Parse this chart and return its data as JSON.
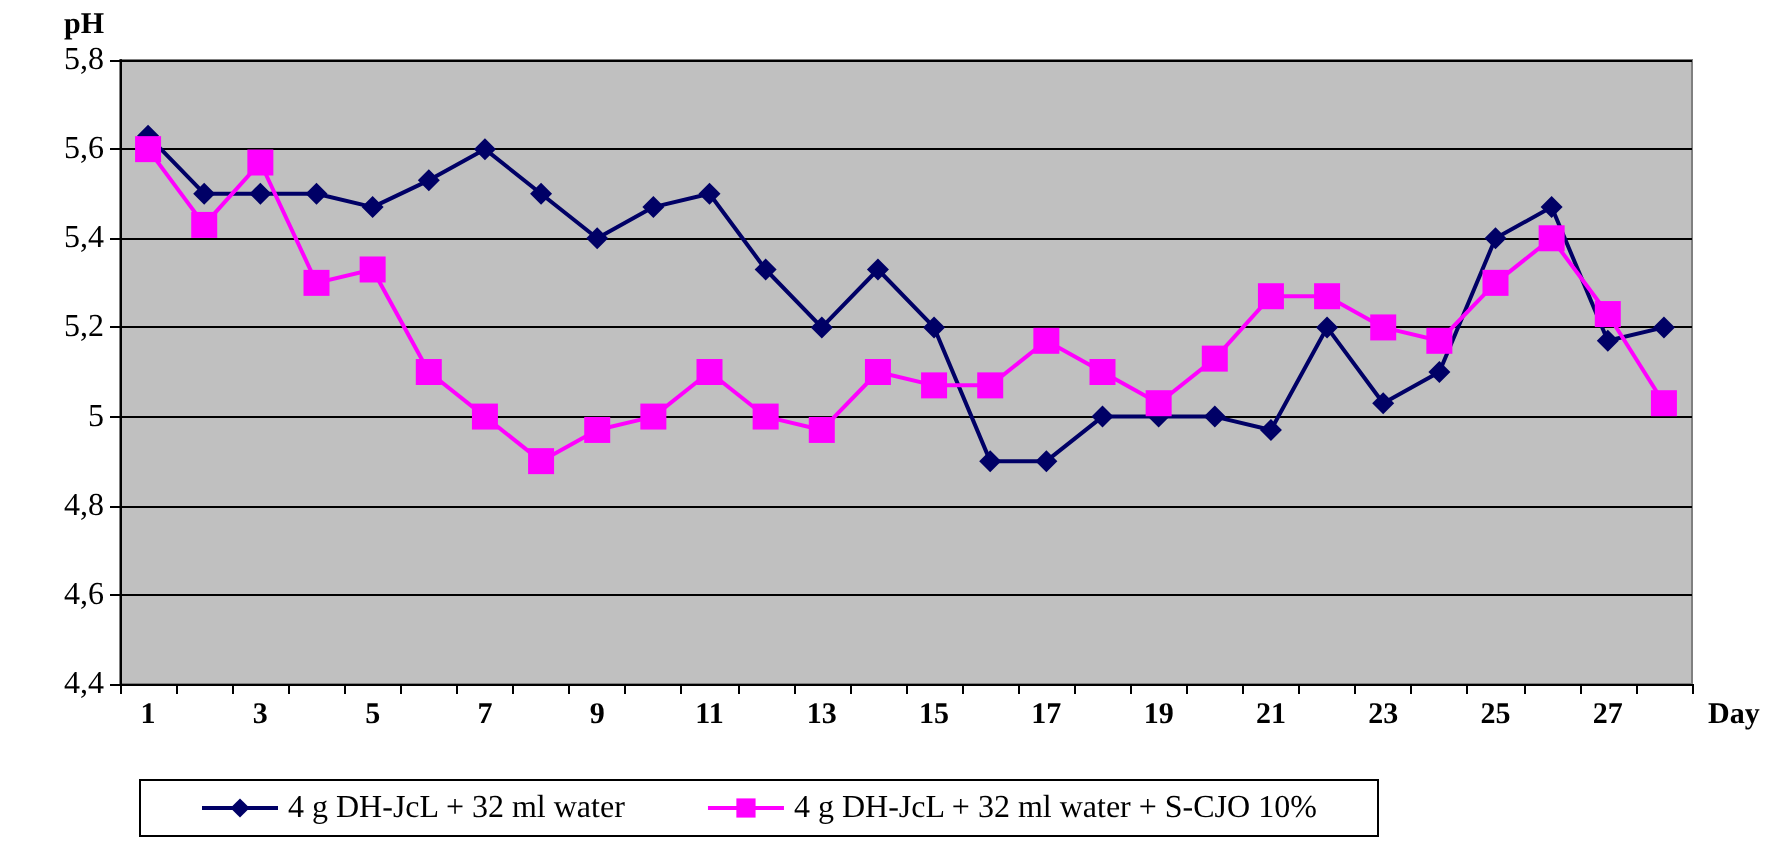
{
  "chart_data": {
    "type": "line",
    "ylabel": "pH",
    "xlabel": "Day",
    "x": [
      1,
      2,
      3,
      4,
      5,
      6,
      7,
      8,
      9,
      10,
      11,
      12,
      13,
      14,
      15,
      16,
      17,
      18,
      19,
      20,
      21,
      22,
      23,
      24,
      25,
      26,
      27,
      28
    ],
    "xlim": [
      0.5,
      28.5
    ],
    "xticks": [
      {
        "value": 0.5,
        "label": null
      },
      1,
      {
        "value": 1.5,
        "label": null
      },
      {
        "value": 2.5,
        "label": null
      },
      3,
      {
        "value": 3.5,
        "label": null
      },
      {
        "value": 4.5,
        "label": null
      },
      5,
      {
        "value": 5.5,
        "label": null
      },
      {
        "value": 6.5,
        "label": null
      },
      7,
      {
        "value": 7.5,
        "label": null
      },
      {
        "value": 8.5,
        "label": null
      },
      9,
      {
        "value": 9.5,
        "label": null
      },
      {
        "value": 10.5,
        "label": null
      },
      11,
      {
        "value": 11.5,
        "label": null
      },
      {
        "value": 12.5,
        "label": null
      },
      13,
      {
        "value": 13.5,
        "label": null
      },
      {
        "value": 14.5,
        "label": null
      },
      15,
      {
        "value": 15.5,
        "label": null
      },
      {
        "value": 16.5,
        "label": null
      },
      17,
      {
        "value": 17.5,
        "label": null
      },
      {
        "value": 18.5,
        "label": null
      },
      19,
      {
        "value": 19.5,
        "label": null
      },
      {
        "value": 20.5,
        "label": null
      },
      21,
      {
        "value": 21.5,
        "label": null
      },
      {
        "value": 22.5,
        "label": null
      },
      23,
      {
        "value": 23.5,
        "label": null
      },
      {
        "value": 24.5,
        "label": null
      },
      25,
      {
        "value": 25.5,
        "label": null
      },
      {
        "value": 26.5,
        "label": null
      },
      27,
      {
        "value": 27.5,
        "label": null
      },
      {
        "value": 28.5,
        "label": null
      }
    ],
    "series": [
      {
        "name": "4 g DH-JcL + 32 ml water",
        "color": "#000066",
        "marker": "diamond",
        "values": [
          5.63,
          5.5,
          5.5,
          5.5,
          5.47,
          5.53,
          5.6,
          5.5,
          5.4,
          5.47,
          5.5,
          5.33,
          5.2,
          5.33,
          5.2,
          4.9,
          4.9,
          5.0,
          5.0,
          5.0,
          4.97,
          5.2,
          5.03,
          5.1,
          5.4,
          5.47,
          5.17,
          5.2
        ]
      },
      {
        "name": "4 g DH-JcL + 32 ml water + S-CJO 10%",
        "color": "#ff00ff",
        "marker": "square",
        "values": [
          5.6,
          5.43,
          5.57,
          5.3,
          5.33,
          5.1,
          5.0,
          4.9,
          4.97,
          5.0,
          5.1,
          5.0,
          4.97,
          5.1,
          5.07,
          5.07,
          5.17,
          5.1,
          5.03,
          5.13,
          5.27,
          5.27,
          5.2,
          5.17,
          5.3,
          5.4,
          5.23,
          5.03
        ]
      }
    ],
    "ylim": [
      4.4,
      5.8
    ],
    "yticks": [
      {
        "value": 4.4,
        "label": "4,4"
      },
      {
        "value": 4.6,
        "label": "4,6"
      },
      {
        "value": 4.8,
        "label": "4,8"
      },
      5,
      {
        "value": 5.2,
        "label": "5,2"
      },
      {
        "value": 5.4,
        "label": "5,4"
      },
      {
        "value": 5.6,
        "label": "5,6"
      },
      {
        "value": 5.8,
        "label": "5,8"
      }
    ],
    "grid": "y",
    "legend": "bottom",
    "line_style": "solid"
  }
}
